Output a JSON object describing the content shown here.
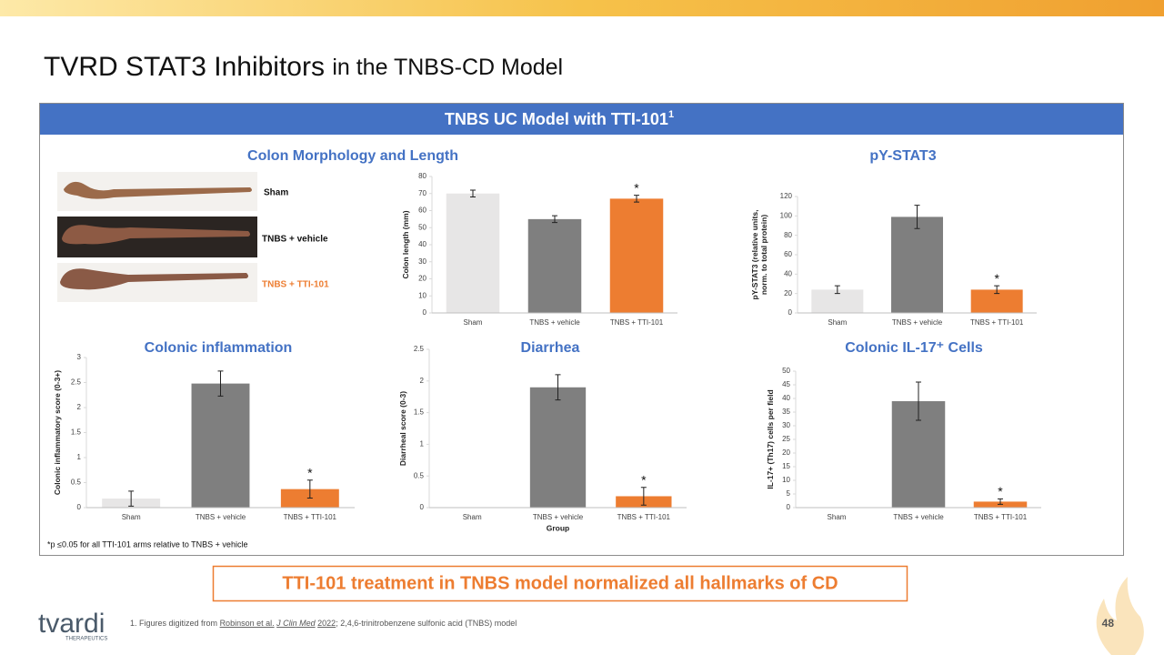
{
  "header": {
    "title_main": "TVRD STAT3 Inhibitors",
    "title_rest": "in the TNBS-CD Model"
  },
  "banner": {
    "text": "TNBS UC Model with TTI-101",
    "sup": "1"
  },
  "morphology": {
    "title": "Colon Morphology and Length",
    "labels": [
      "Sham",
      "TNBS + vehicle",
      "TNBS + TTI-101"
    ]
  },
  "chart_data": [
    {
      "type": "bar",
      "ylabel": [
        "Colon length (mm)"
      ],
      "categories": [
        "Sham",
        "TNBS + vehicle",
        "TNBS + TTI-101"
      ],
      "values": [
        70,
        55,
        67
      ],
      "errors": [
        2,
        2,
        2
      ],
      "colors": [
        "#e7e6e6",
        "#7f7f7f",
        "#ed7d31"
      ],
      "markers": [
        null,
        null,
        "*"
      ],
      "ylim": [
        0,
        80
      ],
      "yticks": [
        0,
        10,
        20,
        30,
        40,
        50,
        60,
        70,
        80
      ]
    },
    {
      "type": "bar",
      "title": "pY-STAT3",
      "ylabel": [
        "pY-STAT3 (relative units,",
        "norm. to total protein)"
      ],
      "categories": [
        "Sham",
        "TNBS + vehicle",
        "TNBS + TTI-101"
      ],
      "values": [
        24,
        99,
        24
      ],
      "errors": [
        4,
        12,
        4
      ],
      "colors": [
        "#e7e6e6",
        "#7f7f7f",
        "#ed7d31"
      ],
      "markers": [
        null,
        null,
        "*"
      ],
      "ylim": [
        0,
        120
      ],
      "yticks": [
        0,
        20,
        40,
        60,
        80,
        100,
        120
      ]
    },
    {
      "type": "bar",
      "title": "Colonic inflammation",
      "ylabel": [
        "Colonic inflammatory score (0-3+)"
      ],
      "categories": [
        "Sham",
        "TNBS + vehicle",
        "TNBS + TTI-101"
      ],
      "values": [
        0.18,
        2.48,
        0.37
      ],
      "errors": [
        0.15,
        0.25,
        0.18
      ],
      "colors": [
        "#e7e6e6",
        "#7f7f7f",
        "#ed7d31"
      ],
      "markers": [
        null,
        null,
        "*"
      ],
      "ylim": [
        0,
        3
      ],
      "yticks": [
        0,
        0.5,
        1,
        1.5,
        2,
        2.5,
        3
      ]
    },
    {
      "type": "bar",
      "title": "Diarrhea",
      "ylabel": [
        "Diarrheal score (0-3)"
      ],
      "xlabel": "Group",
      "categories": [
        "Sham",
        "TNBS + vehicle",
        "TNBS + TTI-101"
      ],
      "values": [
        0,
        1.9,
        0.18
      ],
      "errors": [
        0,
        0.2,
        0.14
      ],
      "colors": [
        "#e7e6e6",
        "#7f7f7f",
        "#ed7d31"
      ],
      "markers": [
        null,
        null,
        "*"
      ],
      "ylim": [
        0,
        2.5
      ],
      "yticks": [
        0,
        0.5,
        1,
        1.5,
        2,
        2.5
      ]
    },
    {
      "type": "bar",
      "title": "Colonic IL-17⁺ Cells",
      "ylabel": [
        "IL-17+ (Th17) cells per field"
      ],
      "categories": [
        "Sham",
        "TNBS + vehicle",
        "TNBS + TTI-101"
      ],
      "values": [
        0,
        39,
        2.2
      ],
      "errors": [
        0,
        7,
        1
      ],
      "colors": [
        "#e7e6e6",
        "#7f7f7f",
        "#ed7d31"
      ],
      "markers": [
        null,
        null,
        "*"
      ],
      "ylim": [
        0,
        50
      ],
      "yticks": [
        0,
        5,
        10,
        15,
        20,
        25,
        30,
        35,
        40,
        45,
        50
      ]
    }
  ],
  "footnote": "*p ≤0.05 for all TTI-101 arms relative to TNBS + vehicle",
  "conclusion": "TTI-101 treatment in TNBS model normalized all hallmarks of CD",
  "footer": {
    "ref_intro": "1. Figures digitized from",
    "ref_authors": "Robinson et al.",
    "ref_journal": "J Clin Med",
    "ref_year": "2022",
    "ref_rest": "; 2,4,6-trinitrobenzene sulfonic acid (TNBS) model"
  },
  "page_number": "48",
  "logo": {
    "name": "tvardi",
    "tagline": "THERAPEUTICS"
  }
}
